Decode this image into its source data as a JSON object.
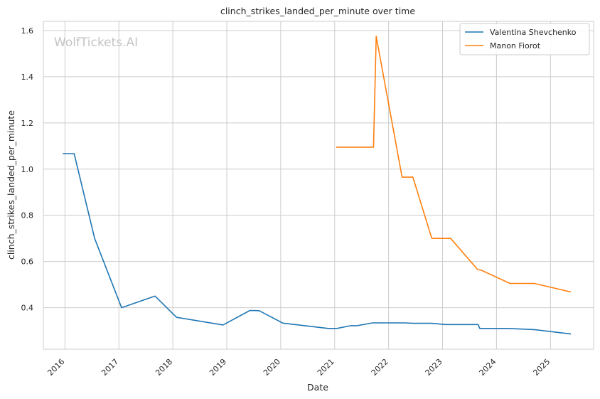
{
  "watermark": "WolfTickets.AI",
  "chart_data": {
    "type": "line",
    "title": "clinch_strikes_landed_per_minute over time",
    "xlabel": "Date",
    "ylabel": "clinch_strikes_landed_per_minute",
    "x_ticks": [
      "2016",
      "2017",
      "2018",
      "2019",
      "2020",
      "2021",
      "2022",
      "2023",
      "2024",
      "2025"
    ],
    "y_ticks": [
      "0.4",
      "0.6",
      "0.8",
      "1.0",
      "1.2",
      "1.4",
      "1.6"
    ],
    "xlim": [
      2015.6,
      2025.8
    ],
    "ylim": [
      0.22,
      1.64
    ],
    "grid": true,
    "legend_position": "top-right",
    "colors": {
      "series_1": "#1f77b4",
      "series_2": "#ff7f0e",
      "grid": "#cccccc",
      "axes": "#cccccc"
    },
    "series": [
      {
        "name": "Valentina Shevchenko",
        "color": "#1f77b4",
        "x": [
          2015.96,
          2016.17,
          2016.55,
          2017.05,
          2017.67,
          2018.07,
          2018.93,
          2019.43,
          2019.6,
          2020.04,
          2020.88,
          2021.04,
          2021.3,
          2021.42,
          2021.7,
          2022.3,
          2022.46,
          2022.8,
          2023.05,
          2023.66,
          2023.69,
          2024.21,
          2024.7,
          2025.38
        ],
        "y": [
          1.067,
          1.067,
          0.7,
          0.4,
          0.45,
          0.358,
          0.325,
          0.388,
          0.387,
          0.333,
          0.31,
          0.31,
          0.322,
          0.322,
          0.334,
          0.334,
          0.332,
          0.332,
          0.327,
          0.327,
          0.31,
          0.31,
          0.305,
          0.286
        ]
      },
      {
        "name": "Manon Fiorot",
        "color": "#ff7f0e",
        "x": [
          2021.03,
          2021.72,
          2021.77,
          2022.25,
          2022.45,
          2022.8,
          2023.15,
          2023.65,
          2023.72,
          2024.25,
          2024.7,
          2025.38
        ],
        "y": [
          1.095,
          1.095,
          1.575,
          0.965,
          0.965,
          0.7,
          0.7,
          0.565,
          0.562,
          0.505,
          0.505,
          0.468
        ]
      }
    ]
  }
}
